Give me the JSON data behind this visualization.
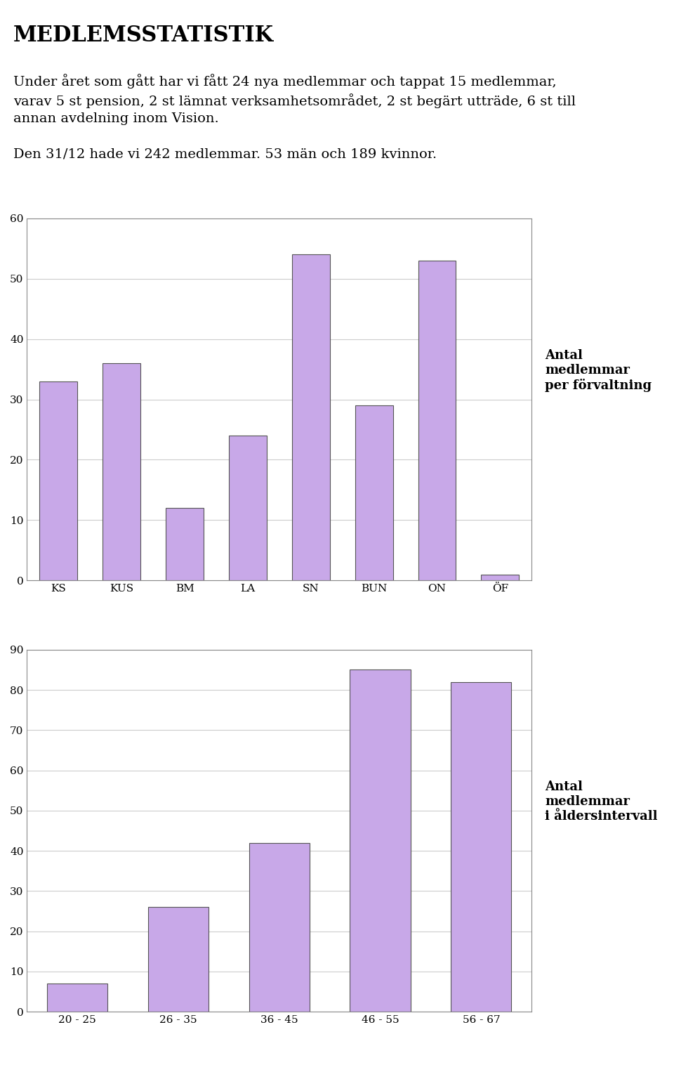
{
  "title": "MEDLEMSSTATISTIK",
  "paragraph1": "Under året som gått har vi fått 24 nya medlemmar och tappat 15 medlemmar,\nvarav 5 st pension, 2 st lämnat verksamhetsområdet, 2 st begärt utträde, 6 st till\nannan avdelning inom Vision.",
  "paragraph2": "Den 31/12 hade vi 242 medlemmar. 53 män och 189 kvinnor.",
  "chart1_categories": [
    "KS",
    "KUS",
    "BM",
    "LA",
    "SN",
    "BUN",
    "ON",
    "ÖF"
  ],
  "chart1_values": [
    33,
    36,
    12,
    24,
    54,
    29,
    53,
    1
  ],
  "chart1_ylim": [
    0,
    60
  ],
  "chart1_yticks": [
    0,
    10,
    20,
    30,
    40,
    50,
    60
  ],
  "chart1_label": "Antal\nmedlemmar\nper förvaltning",
  "chart2_categories": [
    "20 - 25",
    "26 - 35",
    "36 - 45",
    "46 - 55",
    "56 - 67"
  ],
  "chart2_values": [
    7,
    26,
    42,
    85,
    82
  ],
  "chart2_ylim": [
    0,
    90
  ],
  "chart2_yticks": [
    0,
    10,
    20,
    30,
    40,
    50,
    60,
    70,
    80,
    90
  ],
  "chart2_label": "Antal\nmedlemmar\ni åldersintervall",
  "bar_color": "#c8a8e8",
  "bar_edgecolor": "#555555",
  "background_color": "#ffffff",
  "grid_color": "#cccccc",
  "text_color": "#000000",
  "font_family": "serif"
}
